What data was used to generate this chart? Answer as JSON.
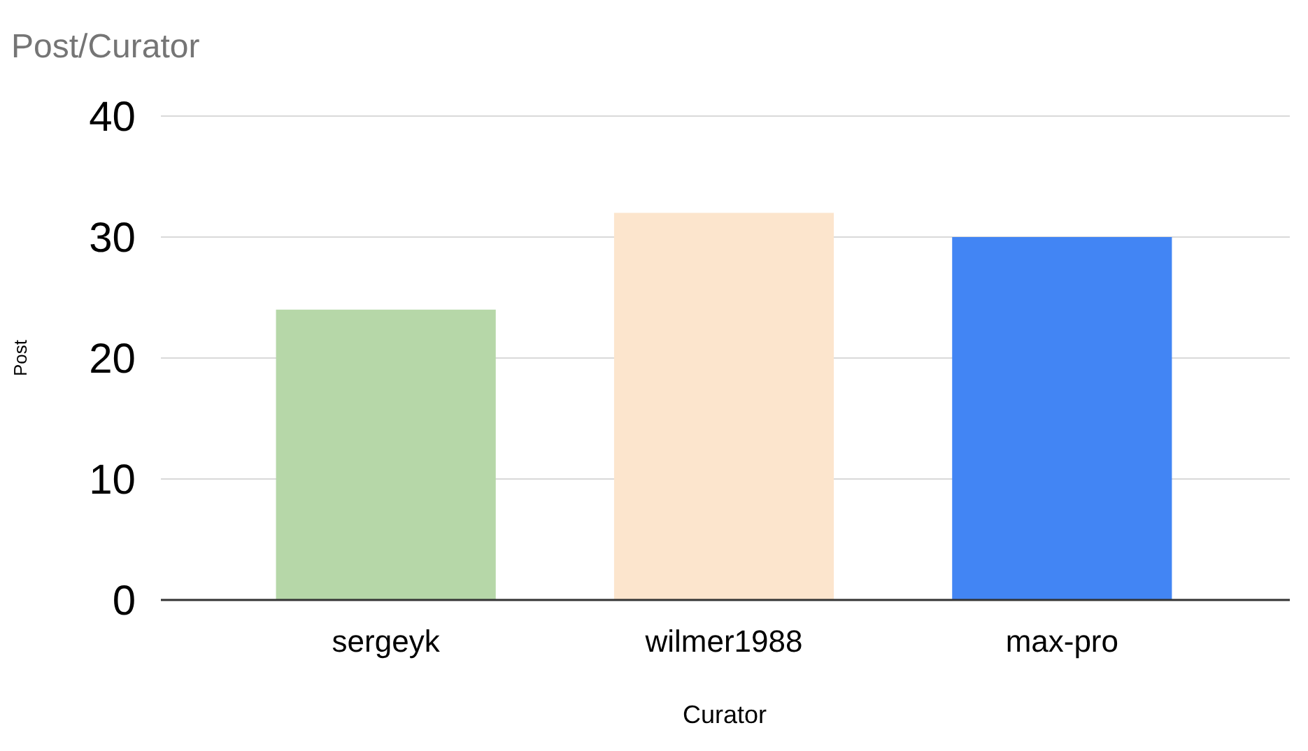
{
  "chart_data": {
    "type": "bar",
    "title": "Post/Curator",
    "xlabel": "Curator",
    "ylabel": "Post",
    "categories": [
      "sergeyk",
      "wilmer1988",
      "max-pro"
    ],
    "values": [
      24,
      32,
      30
    ],
    "colors": [
      "#b6d7a8",
      "#fce5cd",
      "#4285f4"
    ],
    "ylim": [
      0,
      40
    ],
    "yticks": [
      0,
      10,
      20,
      30,
      40
    ],
    "grid": "y"
  }
}
